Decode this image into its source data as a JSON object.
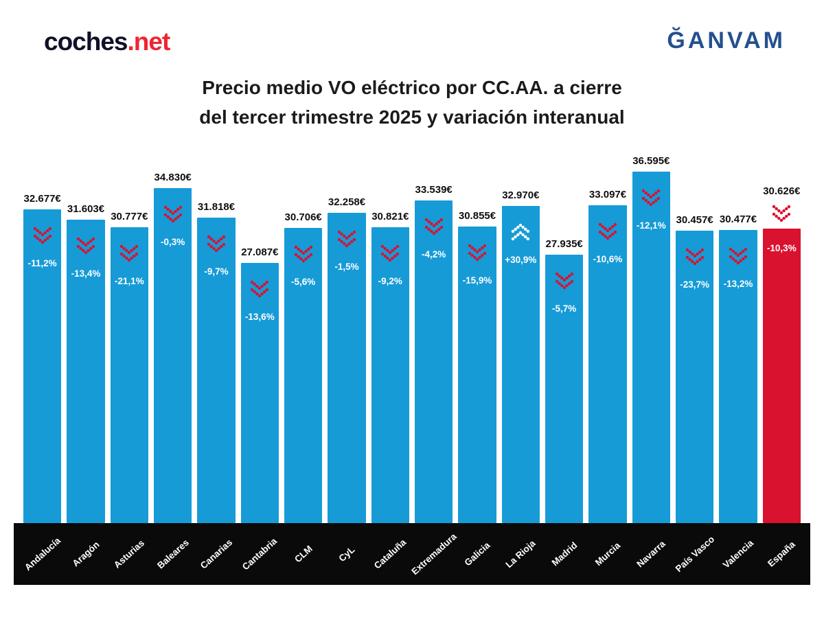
{
  "header": {
    "coches_logo": {
      "text_dark": "coches",
      "dot": ".",
      "text_red": "net"
    },
    "ganvam_logo_text": "ĞANVAM"
  },
  "title": {
    "line1": "Precio medio VO eléctrico por CC.AA. a cierre",
    "line2": "del tercer trimestre 2025 y variación interanual"
  },
  "chart_data": {
    "type": "bar",
    "title": "Precio medio VO eléctrico por CC.AA. a cierre del tercer trimestre 2025 y variación interanual",
    "categories": [
      "Andalucía",
      "Aragón",
      "Asturias",
      "Baleares",
      "Canarias",
      "Cantabria",
      "CLM",
      "CyL",
      "Cataluña",
      "Extremadura",
      "Galicia",
      "La Rioja",
      "Madrid",
      "Murcia",
      "Navarra",
      "País Vasco",
      "Valencia",
      "España"
    ],
    "series": [
      {
        "name": "Precio medio VO eléctrico (€)",
        "values": [
          32677,
          31603,
          30777,
          34830,
          31818,
          27087,
          30706,
          32258,
          30821,
          33539,
          30855,
          32970,
          27935,
          33097,
          36595,
          30457,
          30477,
          30626
        ]
      }
    ],
    "price_labels": [
      "32.677€",
      "31.603€",
      "30.777€",
      "34.830€",
      "31.818€",
      "27.087€",
      "30.706€",
      "32.258€",
      "30.821€",
      "33.539€",
      "30.855€",
      "32.970€",
      "27.935€",
      "33.097€",
      "36.595€",
      "30.457€",
      "30.477€",
      "30.626€"
    ],
    "yoy_change_labels": [
      "-11,2%",
      "-13,4%",
      "-21,1%",
      "-0,3%",
      "-9,7%",
      "-13,6%",
      "-5,6%",
      "-1,5%",
      "-9,2%",
      "-4,2%",
      "-15,9%",
      "+30,9%",
      "-5,7%",
      "-10,6%",
      "-12,1%",
      "-23,7%",
      "-13,2%",
      "-10,3%"
    ],
    "yoy_change_direction": [
      "down",
      "down",
      "down",
      "down",
      "down",
      "down",
      "down",
      "down",
      "down",
      "down",
      "down",
      "up",
      "down",
      "down",
      "down",
      "down",
      "down",
      "down"
    ],
    "highlight_category": "España",
    "ylim": [
      0,
      39430
    ],
    "grid": false,
    "legend": false,
    "bar_color": "#169bd7",
    "highlight_color": "#d9122f",
    "arrow_down_color": "#d9122f",
    "arrow_up_color": "#ffffff",
    "axis_band_color": "#0a0a0a",
    "price_label_color": "#0f0f0f",
    "change_label_color": "#ffffff"
  }
}
